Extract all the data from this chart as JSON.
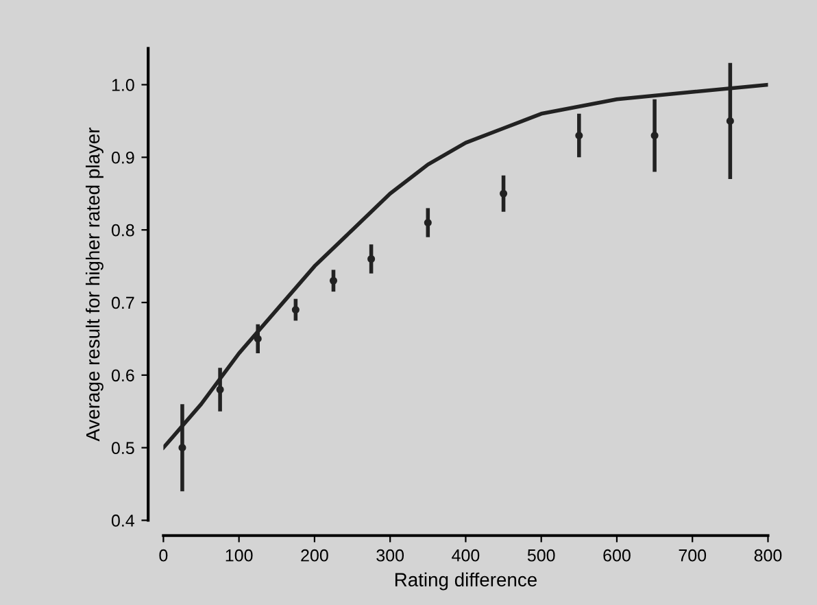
{
  "chart_data": {
    "type": "scatter",
    "xlabel": "Rating difference",
    "ylabel": "Average result for higher rated player",
    "xlim": [
      0,
      800
    ],
    "xticks": [
      0,
      100,
      200,
      300,
      400,
      500,
      600,
      700,
      800
    ],
    "ylim": [
      0.4,
      1.05
    ],
    "yticks": [
      0.4,
      0.5,
      0.6,
      0.7,
      0.8,
      0.9,
      {
        "value": 1.0,
        "label": "1.0"
      }
    ],
    "grid": false,
    "series": [
      {
        "marker": "circle",
        "color": "#222222",
        "x": [
          25,
          75,
          125,
          175,
          225,
          275,
          350,
          450,
          550,
          650,
          750
        ],
        "values": [
          0.5,
          0.58,
          0.65,
          0.69,
          0.73,
          0.76,
          0.81,
          0.85,
          0.93,
          0.93,
          0.95
        ],
        "errors": [
          0.06,
          0.03,
          0.02,
          0.015,
          0.015,
          0.02,
          0.02,
          0.025,
          0.03,
          0.05,
          0.08
        ]
      },
      {
        "type": "line",
        "color": "#222222",
        "x": [
          0,
          50,
          100,
          150,
          200,
          250,
          300,
          350,
          400,
          450,
          500,
          550,
          600,
          700,
          800
        ],
        "values": [
          0.5,
          0.56,
          0.63,
          0.69,
          0.75,
          0.8,
          0.85,
          0.89,
          0.92,
          0.94,
          0.96,
          0.97,
          0.98,
          0.99,
          1.0
        ]
      }
    ]
  }
}
